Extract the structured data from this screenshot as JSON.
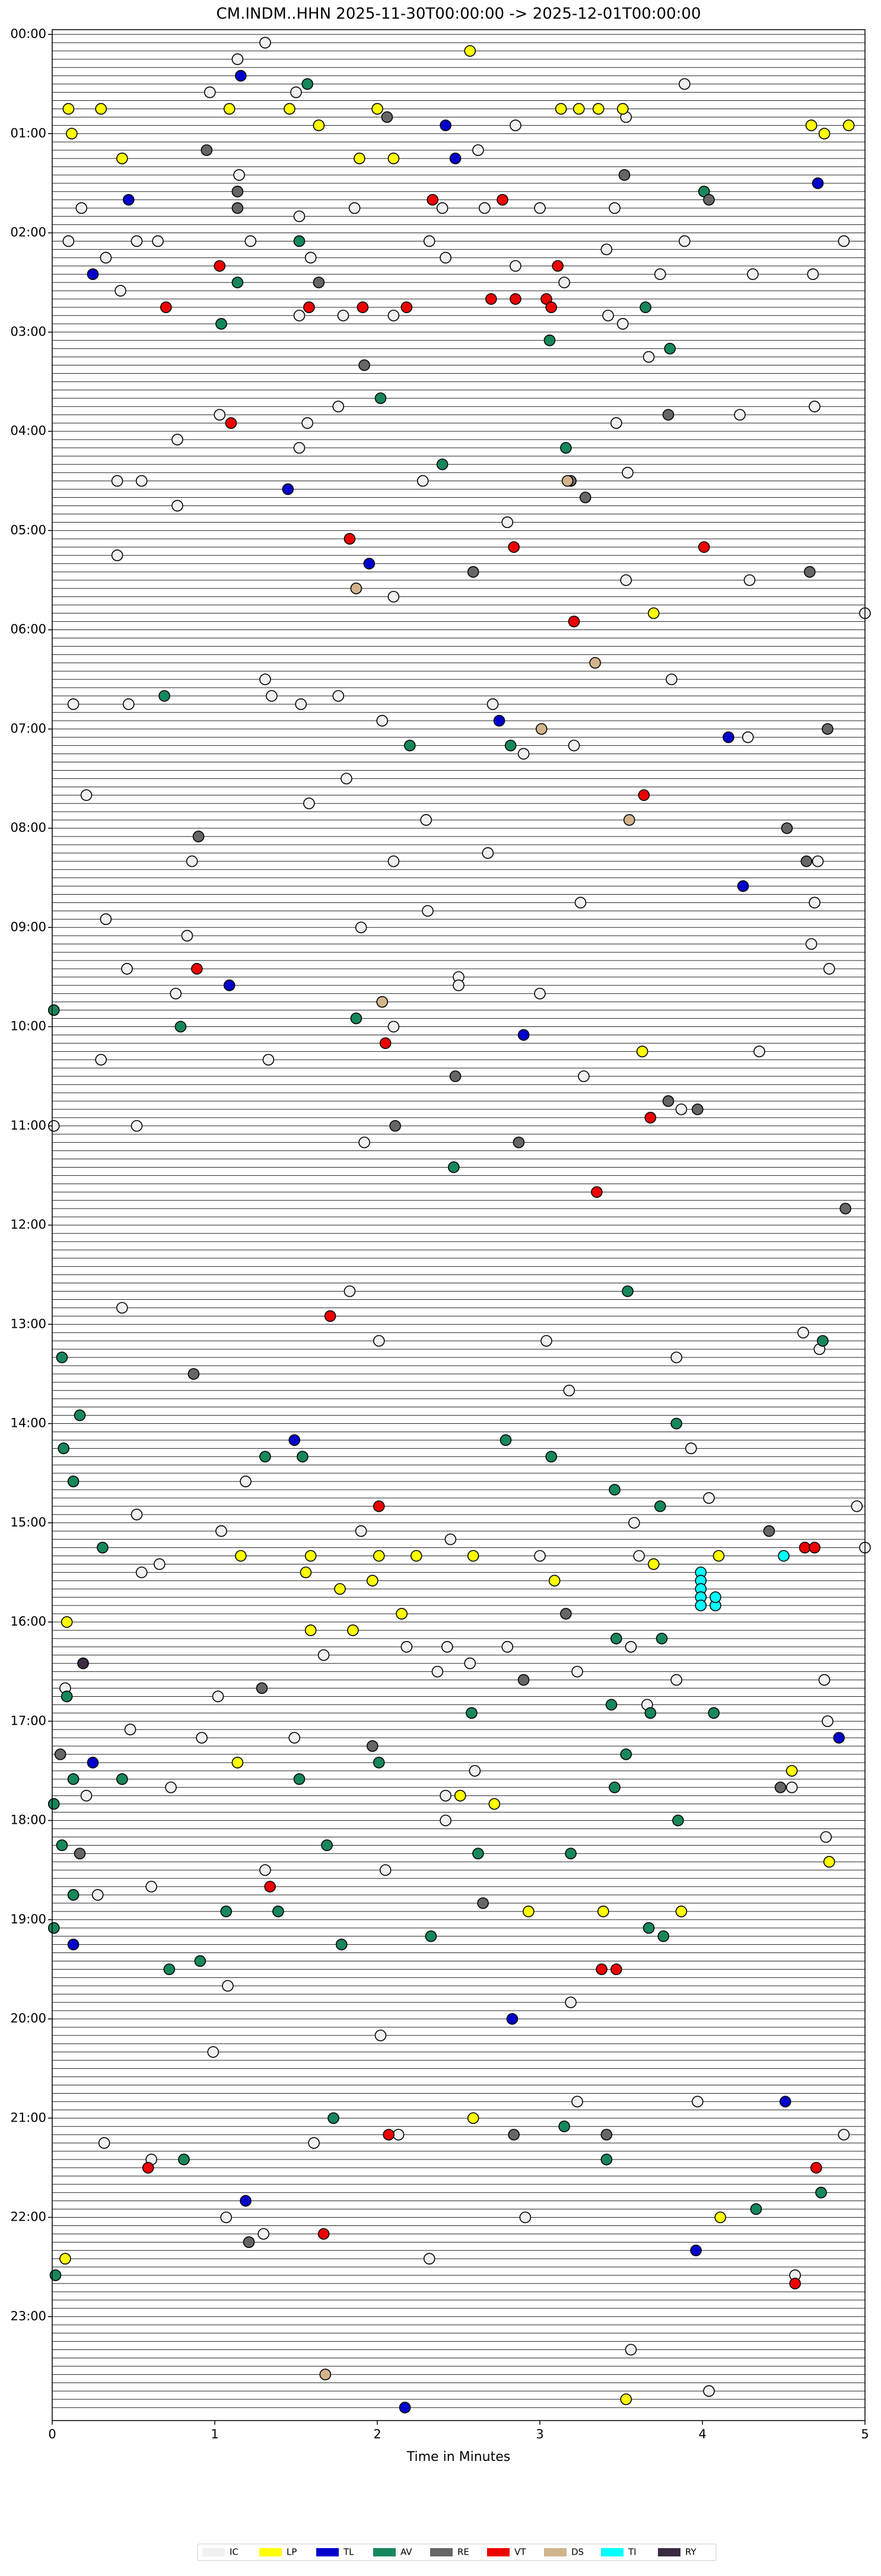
{
  "chart_data": {
    "type": "helicorder",
    "title": "CM.INDM..HHN  2025-11-30T00:00:00 -> 2025-12-01T00:00:00",
    "x_label": "Time in Minutes",
    "xlim": [
      0,
      5
    ],
    "xticks": [
      0,
      1,
      2,
      3,
      4,
      5
    ],
    "ylim": [
      0,
      1440
    ],
    "y_inverted": true,
    "yticks": [
      {
        "value": 0,
        "label": "00:00"
      },
      {
        "value": 60,
        "label": "01:00"
      },
      {
        "value": 120,
        "label": "02:00"
      },
      {
        "value": 180,
        "label": "03:00"
      },
      {
        "value": 240,
        "label": "04:00"
      },
      {
        "value": 300,
        "label": "05:00"
      },
      {
        "value": 360,
        "label": "06:00"
      },
      {
        "value": 420,
        "label": "07:00"
      },
      {
        "value": 480,
        "label": "08:00"
      },
      {
        "value": 540,
        "label": "09:00"
      },
      {
        "value": 600,
        "label": "10:00"
      },
      {
        "value": 660,
        "label": "11:00"
      },
      {
        "value": 720,
        "label": "12:00"
      },
      {
        "value": 780,
        "label": "13:00"
      },
      {
        "value": 840,
        "label": "14:00"
      },
      {
        "value": 900,
        "label": "15:00"
      },
      {
        "value": 960,
        "label": "16:00"
      },
      {
        "value": 1020,
        "label": "17:00"
      },
      {
        "value": 1080,
        "label": "18:00"
      },
      {
        "value": 1140,
        "label": "19:00"
      },
      {
        "value": 1200,
        "label": "20:00"
      },
      {
        "value": 1260,
        "label": "21:00"
      },
      {
        "value": 1320,
        "label": "22:00"
      },
      {
        "value": 1380,
        "label": "23:00"
      }
    ],
    "series": [
      {
        "name": "IC",
        "color": "#f0f0f0",
        "x": [
          1.31,
          1.14,
          0.97,
          1.5,
          3.89,
          2.85,
          3.53,
          2.62,
          1.15,
          2.4,
          2.66,
          1.52,
          1.86,
          3.0,
          3.46,
          0.18,
          0.1,
          0.52,
          0.65,
          1.22,
          2.32,
          3.89,
          4.87,
          0.33,
          1.59,
          2.42,
          2.85,
          3.41,
          3.74,
          4.31,
          4.68,
          3.15,
          0.42,
          1.52,
          1.79,
          2.1,
          3.42,
          3.51,
          3.67,
          1.76,
          1.03,
          4.23,
          4.69,
          1.57,
          3.47,
          0.77,
          1.52,
          0.4,
          0.55,
          2.28,
          3.54,
          0.77,
          2.8,
          0.4,
          3.53,
          4.29,
          2.1,
          5.0,
          1.31,
          1.35,
          0.13,
          0.47,
          1.53,
          1.76,
          2.71,
          2.03,
          3.81,
          4.28,
          2.9,
          3.21,
          1.58,
          1.81,
          0.21,
          2.3,
          2.68,
          2.1,
          0.86,
          4.71,
          3.25,
          2.31,
          4.69,
          0.33,
          1.9,
          0.83,
          0.46,
          2.5,
          2.5,
          4.67,
          4.78,
          0.76,
          3.0,
          2.1,
          0.3,
          1.33,
          3.27,
          0.01,
          0.52,
          1.92,
          4.35,
          3.87,
          1.83,
          0.43,
          2.01,
          3.04,
          3.84,
          4.62,
          4.72,
          3.18,
          3.93,
          1.19,
          0.52,
          1.04,
          1.9,
          0.66,
          0.55,
          2.45,
          3.0,
          3.61,
          5.0,
          4.95,
          4.04,
          3.58,
          2.18,
          2.43,
          2.8,
          3.56,
          0.08,
          1.02,
          2.37,
          2.57,
          3.23,
          3.84,
          4.75,
          1.67,
          0.48,
          0.92,
          1.49,
          4.77,
          3.66,
          2.6,
          0.73,
          2.42,
          0.21,
          4.55,
          4.76,
          2.42,
          1.31,
          2.05,
          0.61,
          0.28,
          1.08,
          2.02,
          0.99,
          3.19,
          3.97,
          4.87,
          0.32,
          1.61,
          2.13,
          0.61,
          1.07,
          2.91,
          1.3,
          2.32,
          4.57,
          4.04,
          3.23,
          3.56
        ],
        "y": [
          5,
          15,
          35,
          35,
          30,
          55,
          50,
          70,
          85,
          105,
          105,
          110,
          105,
          105,
          105,
          105,
          125,
          125,
          125,
          125,
          125,
          125,
          125,
          135,
          135,
          135,
          140,
          130,
          145,
          145,
          145,
          150,
          155,
          170,
          170,
          170,
          170,
          175,
          195,
          225,
          230,
          230,
          225,
          235,
          235,
          245,
          250,
          270,
          270,
          270,
          265,
          285,
          295,
          315,
          330,
          330,
          340,
          350,
          390,
          400,
          405,
          405,
          405,
          400,
          405,
          415,
          390,
          425,
          435,
          430,
          465,
          450,
          460,
          475,
          495,
          500,
          500,
          500,
          525,
          530,
          525,
          535,
          540,
          545,
          565,
          570,
          575,
          550,
          565,
          580,
          580,
          600,
          620,
          620,
          630,
          660,
          660,
          670,
          615,
          650,
          760,
          770,
          790,
          790,
          800,
          785,
          795,
          820,
          855,
          875,
          895,
          905,
          905,
          925,
          930,
          910,
          920,
          920,
          915,
          890,
          885,
          900,
          975,
          975,
          975,
          975,
          1000,
          1005,
          990,
          985,
          990,
          995,
          995,
          980,
          1025,
          1030,
          1030,
          1020,
          1010,
          1050,
          1060,
          1065,
          1065,
          1060,
          1090,
          1080,
          1110,
          1110,
          1120,
          1125,
          1180,
          1210,
          1220,
          1190,
          1250,
          1270,
          1275,
          1275,
          1270,
          1285,
          1320,
          1320,
          1330,
          1345,
          1355,
          1425,
          1250,
          1400
        ]
      },
      {
        "name": "LP",
        "color": "#ffff00",
        "x": [
          2.57,
          0.1,
          0.3,
          1.09,
          1.46,
          2.0,
          3.13,
          3.24,
          3.36,
          3.51,
          1.64,
          0.12,
          4.67,
          4.75,
          4.9,
          0.43,
          1.89,
          2.1,
          3.7,
          3.63,
          1.16,
          1.59,
          2.01,
          2.24,
          2.59,
          4.1,
          1.56,
          1.97,
          1.77,
          3.09,
          3.7,
          2.15,
          0.09,
          1.59,
          1.85,
          1.14,
          2.51,
          2.72,
          4.55,
          4.78,
          2.93,
          3.39,
          3.87,
          2.59,
          4.11,
          0.08,
          3.53
        ],
        "y": [
          10,
          45,
          45,
          45,
          45,
          45,
          45,
          45,
          45,
          45,
          55,
          60,
          55,
          60,
          55,
          75,
          75,
          75,
          350,
          615,
          920,
          920,
          920,
          920,
          920,
          920,
          930,
          935,
          940,
          935,
          925,
          955,
          960,
          965,
          965,
          1045,
          1065,
          1070,
          1050,
          1105,
          1135,
          1135,
          1135,
          1260,
          1320,
          1345,
          1430
        ]
      },
      {
        "name": "TL",
        "color": "#0000cc",
        "x": [
          1.16,
          2.42,
          2.48,
          0.47,
          4.71,
          0.25,
          1.45,
          1.95,
          2.75,
          4.16,
          4.25,
          1.09,
          2.9,
          1.49,
          0.25,
          4.84,
          0.13,
          2.83,
          4.51,
          1.19,
          3.96,
          2.17
        ],
        "y": [
          25,
          55,
          75,
          100,
          90,
          145,
          275,
          320,
          415,
          425,
          515,
          575,
          605,
          850,
          1045,
          1030,
          1155,
          1200,
          1250,
          1310,
          1340,
          1435
        ]
      },
      {
        "name": "AV",
        "color": "#17875c",
        "x": [
          1.57,
          4.01,
          1.52,
          1.14,
          3.65,
          1.04,
          3.8,
          3.06,
          2.02,
          3.16,
          2.4,
          0.69,
          2.2,
          2.82,
          0.79,
          1.87,
          0.01,
          2.47,
          3.54,
          0.06,
          4.74,
          0.17,
          3.84,
          0.07,
          2.79,
          1.31,
          1.54,
          0.13,
          3.07,
          3.46,
          3.74,
          0.31,
          3.75,
          3.47,
          3.44,
          0.09,
          3.68,
          4.07,
          2.58,
          0.13,
          0.43,
          2.01,
          1.52,
          3.53,
          3.46,
          0.01,
          0.06,
          3.85,
          1.69,
          2.62,
          3.19,
          0.13,
          1.07,
          1.39,
          0.01,
          3.67,
          3.76,
          2.33,
          1.78,
          0.72,
          0.91,
          3.15,
          1.73,
          0.81,
          3.41,
          4.33,
          4.73,
          0.02
        ],
        "y": [
          30,
          95,
          125,
          150,
          165,
          175,
          190,
          185,
          220,
          250,
          260,
          400,
          430,
          430,
          600,
          595,
          590,
          685,
          760,
          800,
          790,
          835,
          840,
          855,
          850,
          860,
          860,
          875,
          860,
          880,
          890,
          915,
          970,
          970,
          1010,
          1005,
          1015,
          1015,
          1015,
          1055,
          1055,
          1045,
          1055,
          1040,
          1060,
          1070,
          1095,
          1080,
          1095,
          1100,
          1100,
          1125,
          1135,
          1135,
          1145,
          1145,
          1150,
          1150,
          1155,
          1170,
          1165,
          1265,
          1260,
          1285,
          1285,
          1315,
          1305,
          1355
        ]
      },
      {
        "name": "RE",
        "color": "#666666",
        "x": [
          0.95,
          2.06,
          3.52,
          1.14,
          1.14,
          4.04,
          1.64,
          1.92,
          3.79,
          3.19,
          3.28,
          2.59,
          4.66,
          4.77,
          4.52,
          0.9,
          4.64,
          2.48,
          3.79,
          3.97,
          2.11,
          2.87,
          4.88,
          0.87,
          4.41,
          3.16,
          1.29,
          2.9,
          0.05,
          1.97,
          4.48,
          0.17,
          2.65,
          2.84,
          3.41,
          1.21
        ],
        "y": [
          70,
          50,
          85,
          95,
          105,
          100,
          150,
          200,
          230,
          270,
          280,
          325,
          325,
          420,
          480,
          485,
          500,
          630,
          645,
          650,
          660,
          670,
          710,
          810,
          905,
          955,
          1000,
          995,
          1040,
          1035,
          1060,
          1100,
          1130,
          1270,
          1270,
          1335
        ]
      },
      {
        "name": "VT",
        "color": "#ee0000",
        "x": [
          2.34,
          2.77,
          1.03,
          3.11,
          0.7,
          1.58,
          1.91,
          2.18,
          2.7,
          2.85,
          3.04,
          3.07,
          1.1,
          1.83,
          2.84,
          4.01,
          3.21,
          3.64,
          0.89,
          2.05,
          3.68,
          3.35,
          1.71,
          2.01,
          4.63,
          4.69,
          1.34,
          3.38,
          3.47,
          2.07,
          0.59,
          4.7,
          1.67,
          4.57
        ],
        "y": [
          100,
          100,
          140,
          140,
          165,
          165,
          165,
          165,
          160,
          160,
          160,
          165,
          235,
          305,
          310,
          310,
          355,
          460,
          565,
          610,
          655,
          700,
          775,
          890,
          915,
          915,
          1120,
          1170,
          1170,
          1270,
          1290,
          1290,
          1330,
          1360
        ]
      },
      {
        "name": "DS",
        "color": "#d2b48c",
        "x": [
          3.17,
          1.87,
          3.34,
          3.01,
          3.55,
          2.03,
          1.68
        ],
        "y": [
          270,
          335,
          380,
          420,
          475,
          585,
          1415
        ]
      },
      {
        "name": "TI",
        "color": "#00ffff",
        "x": [
          4.5,
          3.99,
          3.99,
          3.99,
          3.99,
          3.99,
          4.08,
          4.08
        ],
        "y": [
          920,
          930,
          935,
          940,
          945,
          950,
          950,
          945
        ]
      },
      {
        "name": "RY",
        "color": "#3b2a44",
        "x": [
          0.19
        ],
        "y": [
          985
        ]
      }
    ]
  }
}
